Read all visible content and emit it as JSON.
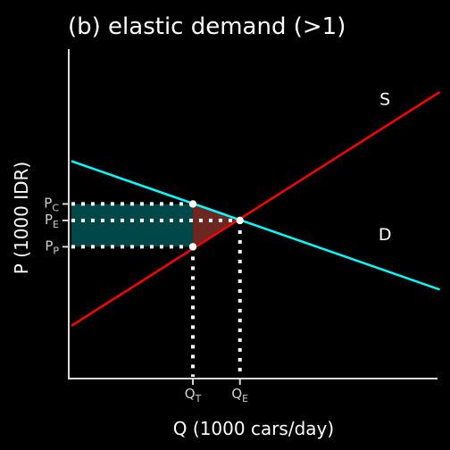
{
  "chart_data": {
    "type": "line",
    "title": "(b) elastic demand (>1)",
    "xlabel": "Q (1000 cars/day)",
    "ylabel": "P (1000 IDR)",
    "xlim": [
      0,
      10
    ],
    "ylim": [
      0,
      10
    ],
    "grid": false,
    "series": [
      {
        "name": "S",
        "color": "#ff0000",
        "x": [
          0.5,
          9.9
        ],
        "y": [
          1.6,
          8.7
        ]
      },
      {
        "name": "D",
        "color": "#00ffff",
        "x": [
          0.5,
          9.9
        ],
        "y": [
          6.6,
          2.7
        ]
      }
    ],
    "x_ticks": [
      {
        "main": "Q",
        "sub": "T",
        "value": 3.6
      },
      {
        "main": "Q",
        "sub": "E",
        "value": 4.8
      }
    ],
    "y_ticks": [
      {
        "main": "P",
        "sub": "C",
        "value": 5.3
      },
      {
        "main": "P",
        "sub": "E",
        "value": 4.8
      },
      {
        "main": "P",
        "sub": "P",
        "value": 4.0
      }
    ],
    "points": [
      {
        "x": 3.6,
        "y": 5.3
      },
      {
        "x": 3.6,
        "y": 4.0
      },
      {
        "x": 4.8,
        "y": 4.8
      }
    ],
    "tax_revenue_area": {
      "x": [
        0.5,
        3.6
      ],
      "y": [
        4.0,
        5.3
      ],
      "color": "#00474a"
    },
    "deadweight_loss_area": {
      "vertices": [
        [
          3.6,
          5.3
        ],
        [
          3.6,
          4.0
        ],
        [
          4.8,
          4.8
        ]
      ],
      "color": "#6e2620"
    },
    "curve_labels": [
      {
        "text": "S",
        "x": 8.5,
        "y": 8.3
      },
      {
        "text": "D",
        "x": 8.5,
        "y": 4.2
      }
    ]
  }
}
